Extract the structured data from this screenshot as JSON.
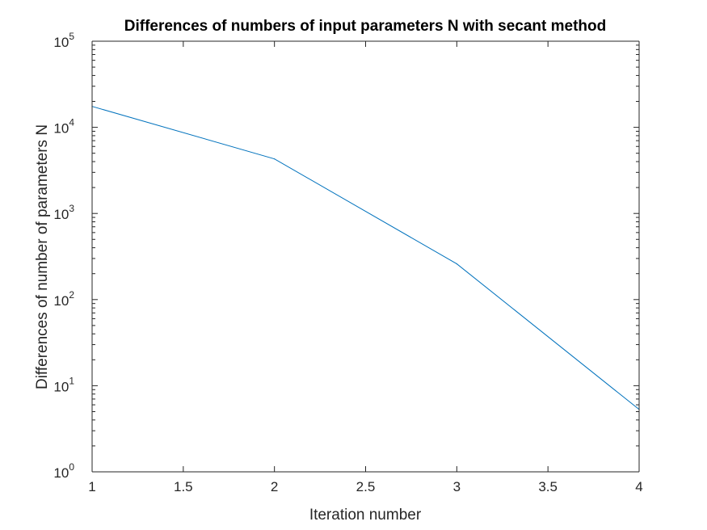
{
  "chart_data": {
    "type": "line",
    "title": "Differences of numbers of input parameters N with secant method",
    "xlabel": "Iteration number",
    "ylabel": "Differences of number of parameters N",
    "xlim": [
      1,
      4
    ],
    "ylim": [
      1,
      100000
    ],
    "yscale": "log",
    "grid": false,
    "x_ticks": [
      "1",
      "1.5",
      "2",
      "2.5",
      "3",
      "3.5",
      "4"
    ],
    "x_tick_values": [
      1,
      1.5,
      2,
      2.5,
      3,
      3.5,
      4
    ],
    "y_ticks": [
      {
        "base": "10",
        "exp": "0",
        "value": 1
      },
      {
        "base": "10",
        "exp": "1",
        "value": 10
      },
      {
        "base": "10",
        "exp": "2",
        "value": 100
      },
      {
        "base": "10",
        "exp": "3",
        "value": 1000
      },
      {
        "base": "10",
        "exp": "4",
        "value": 10000
      },
      {
        "base": "10",
        "exp": "5",
        "value": 100000
      }
    ],
    "series": [
      {
        "x": [
          1,
          2,
          3,
          4
        ],
        "y": [
          17500,
          4300,
          260,
          5.3
        ],
        "color": "#0072BD"
      }
    ]
  }
}
